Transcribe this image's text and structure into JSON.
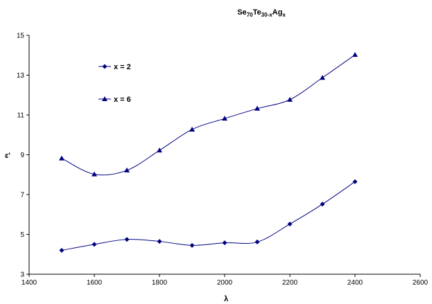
{
  "chart_data": {
    "type": "line",
    "title": {
      "base": "Se",
      "s1": "70",
      "mid": "Te",
      "s2": "30-x",
      "tail": "Ag",
      "s3": "x"
    },
    "xlabel": "λ",
    "ylabel": "ε'",
    "xlim": [
      1400,
      2600
    ],
    "ylim": [
      3,
      15
    ],
    "xticks": [
      1400,
      1600,
      1800,
      2000,
      2200,
      2400,
      2600
    ],
    "yticks": [
      3,
      5,
      7,
      9,
      11,
      13,
      15
    ],
    "smooth": true,
    "grid": false,
    "legend_position": "top-left",
    "line_color": "#000080",
    "series": [
      {
        "name": "x = 2",
        "marker": "diamond",
        "x": [
          1500,
          1600,
          1700,
          1800,
          1900,
          2000,
          2100,
          2200,
          2300,
          2400
        ],
        "y": [
          4.2,
          4.5,
          4.75,
          4.65,
          4.45,
          4.58,
          4.62,
          5.52,
          6.52,
          7.65
        ]
      },
      {
        "name": "x = 6",
        "marker": "triangle",
        "x": [
          1500,
          1600,
          1700,
          1800,
          1900,
          2000,
          2100,
          2200,
          2300,
          2400
        ],
        "y": [
          8.82,
          8.02,
          8.22,
          9.22,
          10.27,
          10.82,
          11.32,
          11.77,
          12.87,
          14.02
        ]
      }
    ]
  }
}
